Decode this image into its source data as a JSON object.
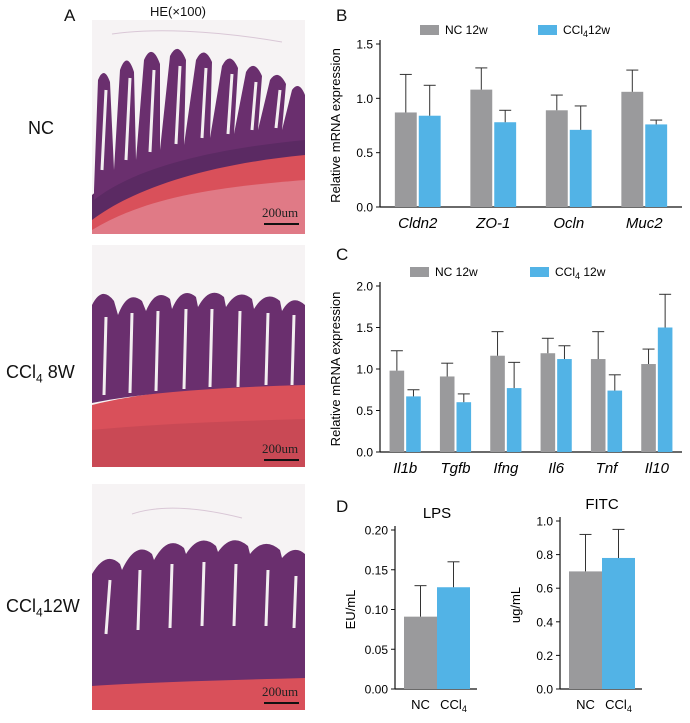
{
  "panels": {
    "A": {
      "letter": "A",
      "title": "HE(×100)",
      "rows": [
        {
          "label": "NC",
          "sub": "",
          "suffix": "",
          "scale": "200um"
        },
        {
          "label": "CCl",
          "sub": "4",
          "suffix": " 8W",
          "scale": "200um"
        },
        {
          "label": "CCl",
          "sub": "4",
          "suffix": "12W",
          "scale": "200um"
        }
      ]
    },
    "B": {
      "letter": "B"
    },
    "C": {
      "letter": "C"
    },
    "D": {
      "letter": "D"
    }
  },
  "colors": {
    "nc": "#9a9a9c",
    "ccl4": "#52b3e6",
    "tissue_stain": "#5b2a63",
    "muscle_stain": "#d9505a"
  },
  "chart_data": [
    {
      "id": "B",
      "type": "bar",
      "ylabel": "Relative mRNA expression",
      "ylim": [
        0,
        1.5
      ],
      "yticks": [
        "0.0",
        "0.5",
        "1.0",
        "1.5"
      ],
      "categories": [
        "Cldn2",
        "ZO-1",
        "Ocln",
        "Muc2"
      ],
      "legend": [
        {
          "name": "NC 12w"
        },
        {
          "name": "CCl",
          "sub": "4",
          "suffix": "12w"
        }
      ],
      "series": [
        {
          "name": "NC 12w",
          "values": [
            0.87,
            1.08,
            0.89,
            1.06
          ],
          "err": [
            0.35,
            0.2,
            0.14,
            0.2
          ]
        },
        {
          "name": "CCl4 12w",
          "values": [
            0.84,
            0.78,
            0.71,
            0.76
          ],
          "err": [
            0.28,
            0.11,
            0.22,
            0.04
          ]
        }
      ]
    },
    {
      "id": "C",
      "type": "bar",
      "ylabel": "Relative mRNA expression",
      "ylim": [
        0,
        2.0
      ],
      "yticks": [
        "0.0",
        "0.5",
        "1.0",
        "1.5",
        "2.0"
      ],
      "categories": [
        "Il1b",
        "Tgfb",
        "Ifng",
        "Il6",
        "Tnf",
        "Il10"
      ],
      "legend": [
        {
          "name": "NC 12w"
        },
        {
          "name": "CCl",
          "sub": "4",
          "suffix": " 12w"
        }
      ],
      "series": [
        {
          "name": "NC 12w",
          "values": [
            0.98,
            0.91,
            1.16,
            1.19,
            1.12,
            1.06
          ],
          "err": [
            0.24,
            0.16,
            0.29,
            0.18,
            0.33,
            0.18
          ]
        },
        {
          "name": "CCl4 12w",
          "values": [
            0.67,
            0.6,
            0.77,
            1.12,
            0.74,
            1.5
          ],
          "err": [
            0.08,
            0.1,
            0.31,
            0.16,
            0.19,
            0.4
          ]
        }
      ]
    },
    {
      "id": "D1",
      "type": "bar",
      "title": "LPS",
      "ylabel": "EU/mL",
      "ylim": [
        0,
        0.2
      ],
      "yticks": [
        "0.00",
        "0.05",
        "0.10",
        "0.15",
        "0.20"
      ],
      "categories": [
        "NC",
        "CCl4"
      ],
      "values": [
        0.091,
        0.128
      ],
      "err": [
        0.039,
        0.032
      ]
    },
    {
      "id": "D2",
      "type": "bar",
      "title": "FITC",
      "ylabel": "ug/mL",
      "ylim": [
        0,
        1.0
      ],
      "yticks": [
        "0.0",
        "0.2",
        "0.4",
        "0.6",
        "0.8",
        "1.0"
      ],
      "categories": [
        "NC",
        "CCl4"
      ],
      "values": [
        0.7,
        0.78
      ],
      "err": [
        0.22,
        0.17
      ]
    }
  ]
}
